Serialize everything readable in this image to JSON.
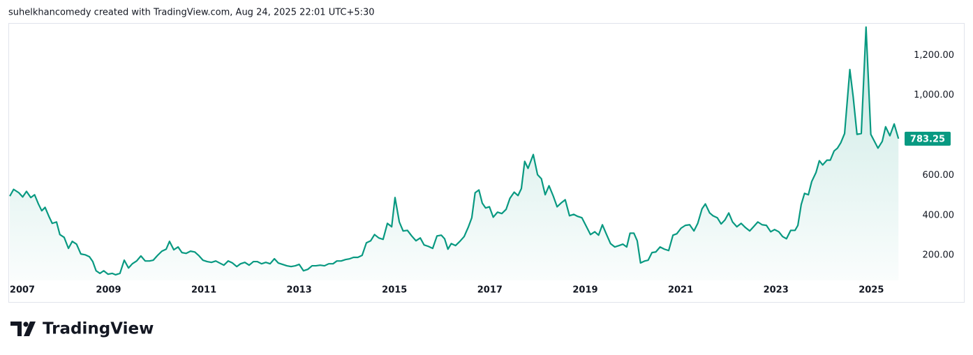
{
  "header": "suhelkhancomedy created with TradingView.com, Aug 24, 2025 22:01 UTC+5:30",
  "footer": {
    "brand": "TradingView"
  },
  "chart_data": {
    "type": "area",
    "color": "#089981",
    "grid": false,
    "x": [
      2006.93,
      2007.01,
      2007.12,
      2007.2,
      2007.28,
      2007.37,
      2007.45,
      2007.53,
      2007.6,
      2007.67,
      2007.75,
      2007.82,
      2007.91,
      2007.98,
      2008.07,
      2008.16,
      2008.24,
      2008.33,
      2008.42,
      2008.51,
      2008.6,
      2008.67,
      2008.74,
      2008.82,
      2008.9,
      2008.99,
      2009.08,
      2009.15,
      2009.24,
      2009.33,
      2009.42,
      2009.5,
      2009.59,
      2009.68,
      2009.77,
      2009.86,
      2009.94,
      2010.03,
      2010.12,
      2010.21,
      2010.28,
      2010.37,
      2010.46,
      2010.54,
      2010.63,
      2010.72,
      2010.81,
      2010.89,
      2010.98,
      2011.07,
      2011.16,
      2011.25,
      2011.33,
      2011.42,
      2011.51,
      2011.6,
      2011.69,
      2011.77,
      2011.86,
      2011.95,
      2012.04,
      2012.12,
      2012.21,
      2012.3,
      2012.39,
      2012.48,
      2012.56,
      2012.65,
      2012.74,
      2012.83,
      2012.92,
      2013.0,
      2013.09,
      2013.18,
      2013.27,
      2013.35,
      2013.44,
      2013.53,
      2013.62,
      2013.71,
      2013.79,
      2013.88,
      2013.97,
      2014.06,
      2014.14,
      2014.23,
      2014.32,
      2014.41,
      2014.5,
      2014.58,
      2014.67,
      2014.76,
      2014.85,
      2014.94,
      2015.01,
      2015.1,
      2015.18,
      2015.27,
      2015.36,
      2015.45,
      2015.54,
      2015.62,
      2015.71,
      2015.8,
      2015.89,
      2015.98,
      2016.05,
      2016.12,
      2016.19,
      2016.28,
      2016.37,
      2016.46,
      2016.55,
      2016.62,
      2016.69,
      2016.77,
      2016.84,
      2016.91,
      2016.99,
      2017.07,
      2017.16,
      2017.25,
      2017.34,
      2017.42,
      2017.51,
      2017.59,
      2017.66,
      2017.73,
      2017.8,
      2017.91,
      2018.0,
      2018.08,
      2018.16,
      2018.24,
      2018.33,
      2018.41,
      2018.49,
      2018.58,
      2018.67,
      2018.76,
      2018.84,
      2018.93,
      2019.02,
      2019.11,
      2019.2,
      2019.28,
      2019.36,
      2019.44,
      2019.53,
      2019.62,
      2019.71,
      2019.79,
      2019.87,
      2019.94,
      2020.02,
      2020.09,
      2020.16,
      2020.25,
      2020.32,
      2020.4,
      2020.48,
      2020.57,
      2020.66,
      2020.75,
      2020.84,
      2020.92,
      2021.01,
      2021.1,
      2021.19,
      2021.28,
      2021.36,
      2021.45,
      2021.52,
      2021.61,
      2021.68,
      2021.77,
      2021.85,
      2021.93,
      2022.01,
      2022.09,
      2022.18,
      2022.27,
      2022.36,
      2022.45,
      2022.53,
      2022.62,
      2022.71,
      2022.8,
      2022.89,
      2022.97,
      2023.06,
      2023.14,
      2023.22,
      2023.31,
      2023.4,
      2023.46,
      2023.53,
      2023.6,
      2023.68,
      2023.75,
      2023.84,
      2023.91,
      2023.98,
      2024.07,
      2024.14,
      2024.22,
      2024.29,
      2024.36,
      2024.44,
      2024.55,
      2024.62,
      2024.7,
      2024.79,
      2024.89,
      2024.99,
      2025.14,
      2025.23,
      2025.3,
      2025.39,
      2025.48,
      2025.57
    ],
    "values": [
      496,
      530,
      513,
      492,
      520,
      489,
      503,
      457,
      423,
      440,
      395,
      360,
      367,
      304,
      290,
      235,
      270,
      256,
      207,
      203,
      193,
      169,
      123,
      110,
      123,
      106,
      110,
      103,
      110,
      176,
      137,
      158,
      172,
      197,
      172,
      172,
      176,
      200,
      221,
      231,
      270,
      228,
      242,
      214,
      210,
      221,
      217,
      200,
      176,
      169,
      165,
      172,
      162,
      151,
      172,
      162,
      144,
      158,
      165,
      151,
      169,
      169,
      158,
      165,
      158,
      183,
      162,
      155,
      148,
      144,
      148,
      155,
      123,
      130,
      148,
      148,
      151,
      148,
      158,
      158,
      172,
      172,
      179,
      183,
      190,
      190,
      200,
      263,
      273,
      304,
      287,
      280,
      360,
      343,
      489,
      367,
      322,
      325,
      297,
      273,
      287,
      252,
      245,
      235,
      297,
      301,
      283,
      231,
      259,
      249,
      270,
      294,
      343,
      388,
      513,
      527,
      461,
      437,
      443,
      391,
      416,
      409,
      430,
      485,
      516,
      499,
      534,
      670,
      635,
      704,
      603,
      583,
      503,
      548,
      496,
      443,
      461,
      478,
      398,
      405,
      395,
      388,
      346,
      304,
      318,
      301,
      353,
      308,
      259,
      242,
      249,
      256,
      242,
      311,
      311,
      273,
      162,
      172,
      176,
      214,
      217,
      242,
      231,
      224,
      301,
      308,
      336,
      350,
      353,
      322,
      360,
      433,
      457,
      412,
      398,
      388,
      357,
      377,
      412,
      367,
      343,
      360,
      339,
      322,
      343,
      367,
      353,
      350,
      318,
      329,
      318,
      294,
      283,
      325,
      325,
      350,
      454,
      510,
      503,
      569,
      614,
      673,
      652,
      676,
      676,
      722,
      736,
      763,
      809,
      1129,
      993,
      805,
      809,
      1341,
      805,
      736,
      770,
      843,
      798,
      857,
      783.25
    ],
    "xlim": [
      2006.9,
      2025.64
    ],
    "xticks": [
      2007,
      2009,
      2011,
      2013,
      2015,
      2017,
      2019,
      2021,
      2023,
      2025
    ],
    "ylim": [
      75,
      1358
    ],
    "yticks": [
      {
        "value": 200,
        "label": "200.00"
      },
      {
        "value": 400,
        "label": "400.00"
      },
      {
        "value": 600,
        "label": "600.00"
      },
      {
        "value": 1000,
        "label": "1,000.00"
      },
      {
        "value": 1200,
        "label": "1,200.00"
      }
    ]
  }
}
